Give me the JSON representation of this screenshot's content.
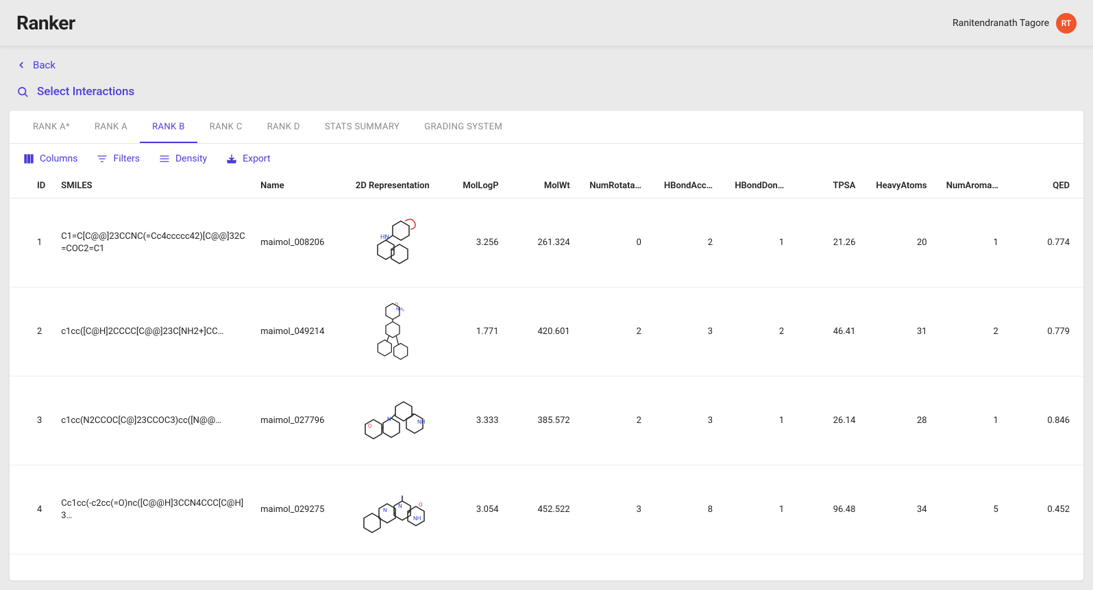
{
  "brand": "Ranker",
  "user": {
    "name": "Ranitendranath Tagore",
    "initials": "RT"
  },
  "colors": {
    "accent": "#4a3ddb",
    "avatar_bg": "#f0562b"
  },
  "nav": {
    "back_label": "Back",
    "select_label": "Select Interactions"
  },
  "tabs": [
    {
      "id": "ranka-star",
      "label": "RANK A*",
      "active": false
    },
    {
      "id": "ranka",
      "label": "RANK A",
      "active": false
    },
    {
      "id": "rankb",
      "label": "RANK B",
      "active": true
    },
    {
      "id": "rankc",
      "label": "RANK C",
      "active": false
    },
    {
      "id": "rankd",
      "label": "RANK D",
      "active": false
    },
    {
      "id": "stats",
      "label": "STATS SUMMARY",
      "active": false
    },
    {
      "id": "grading",
      "label": "GRADING SYSTEM",
      "active": false
    }
  ],
  "toolbar": {
    "columns": "Columns",
    "filters": "Filters",
    "density": "Density",
    "export": "Export"
  },
  "columns": [
    {
      "key": "id",
      "label": "ID"
    },
    {
      "key": "smiles",
      "label": "SMILES"
    },
    {
      "key": "name",
      "label": "Name"
    },
    {
      "key": "rep",
      "label": "2D Representation"
    },
    {
      "key": "mollogp",
      "label": "MolLogP"
    },
    {
      "key": "molwt",
      "label": "MolWt"
    },
    {
      "key": "numrot",
      "label": "NumRotata…"
    },
    {
      "key": "hacc",
      "label": "HBondAcc…"
    },
    {
      "key": "hdon",
      "label": "HBondDon…"
    },
    {
      "key": "tpsa",
      "label": "TPSA"
    },
    {
      "key": "heavy",
      "label": "HeavyAtoms"
    },
    {
      "key": "narom",
      "label": "NumAroma…"
    },
    {
      "key": "qed",
      "label": "QED"
    }
  ],
  "rows": [
    {
      "id": "1",
      "smiles": "C1=C[C@@]23CCNC(=Cc4ccccc42)[C@@]32C=COC2=C1",
      "name": "maimol_008206",
      "mollogp": "3.256",
      "molwt": "261.324",
      "numrot": "0",
      "hacc": "2",
      "hdon": "1",
      "tpsa": "21.26",
      "heavy": "20",
      "narom": "1",
      "qed": "0.774"
    },
    {
      "id": "2",
      "smiles": "c1cc([C@H]2CCCC[C@@]23C[NH2+]CC…",
      "name": "maimol_049214",
      "mollogp": "1.771",
      "molwt": "420.601",
      "numrot": "2",
      "hacc": "3",
      "hdon": "2",
      "tpsa": "46.41",
      "heavy": "31",
      "narom": "2",
      "qed": "0.779"
    },
    {
      "id": "3",
      "smiles": "c1cc(N2CCOC[C@]23CCOC3)cc([N@@…",
      "name": "maimol_027796",
      "mollogp": "3.333",
      "molwt": "385.572",
      "numrot": "2",
      "hacc": "3",
      "hdon": "1",
      "tpsa": "26.14",
      "heavy": "28",
      "narom": "1",
      "qed": "0.846"
    },
    {
      "id": "4",
      "smiles": "Cc1cc(-c2cc(=O)nc([C@@H]3CCN4CCC[C@H]3…",
      "name": "maimol_029275",
      "mollogp": "3.054",
      "molwt": "452.522",
      "numrot": "3",
      "hacc": "8",
      "hdon": "1",
      "tpsa": "96.48",
      "heavy": "34",
      "narom": "5",
      "qed": "0.452"
    }
  ]
}
